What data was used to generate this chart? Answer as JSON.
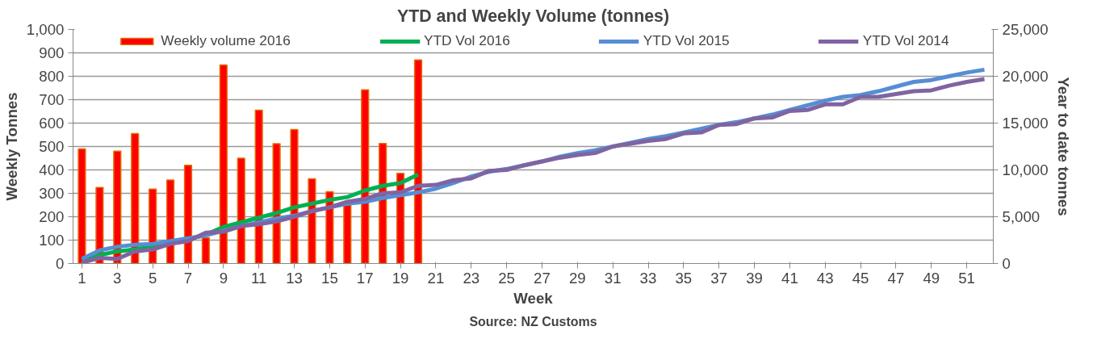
{
  "chart_data": {
    "type": "bar",
    "title": "YTD and Weekly Volume (tonnes)",
    "xlabel": "Week",
    "ylabel": "Weekly Tonnes",
    "y2label": "Year to date tonnes",
    "annotations": [
      "Source: NZ Customs"
    ],
    "x": [
      1,
      2,
      3,
      4,
      5,
      6,
      7,
      8,
      9,
      10,
      11,
      12,
      13,
      14,
      15,
      16,
      17,
      18,
      19,
      20,
      21,
      22,
      23,
      24,
      25,
      26,
      27,
      28,
      29,
      30,
      31,
      32,
      33,
      34,
      35,
      36,
      37,
      38,
      39,
      40,
      41,
      42,
      43,
      44,
      45,
      46,
      47,
      48,
      49,
      50,
      51,
      52
    ],
    "xlim": [
      0.5,
      52.5
    ],
    "xticks": [
      1,
      3,
      5,
      7,
      9,
      11,
      13,
      15,
      17,
      19,
      21,
      23,
      25,
      27,
      29,
      31,
      33,
      35,
      37,
      39,
      41,
      43,
      45,
      47,
      49,
      51
    ],
    "ylim": [
      0,
      1000
    ],
    "yticks": [
      0,
      100,
      200,
      300,
      400,
      500,
      600,
      700,
      800,
      900,
      {
        "value": 1000,
        "label": "1,000"
      }
    ],
    "y2lim": [
      0,
      25000
    ],
    "y2ticks": [
      0,
      {
        "value": 5000,
        "label": "5,000"
      },
      {
        "value": 10000,
        "label": "10,000"
      },
      {
        "value": 15000,
        "label": "15,000"
      },
      {
        "value": 20000,
        "label": "20,000"
      },
      {
        "value": 25000,
        "label": "25,000"
      }
    ],
    "grid": "y",
    "legend": "top",
    "series": [
      {
        "name": "Weekly volume 2016",
        "color": "#ff0000",
        "values": [
          490,
          325,
          480,
          555,
          318,
          357,
          420,
          110,
          848,
          450,
          655,
          512,
          572,
          362,
          307,
          250,
          742,
          513,
          385,
          870,
          null,
          null,
          null,
          null,
          null,
          null,
          null,
          null,
          null,
          null,
          null,
          null,
          null,
          null,
          null,
          null,
          null,
          null,
          null,
          null,
          null,
          null,
          null,
          null,
          null,
          null,
          null,
          null,
          null,
          null,
          null,
          null
        ]
      },
      {
        "name": "YTD Vol 2016",
        "type": "line",
        "axis": "y2",
        "color": "#00b050",
        "values": [
          400,
          900,
          1300,
          1500,
          1900,
          2300,
          2600,
          3100,
          3900,
          4400,
          4900,
          5400,
          6000,
          6400,
          6800,
          7100,
          7800,
          8300,
          8600,
          9500,
          null,
          null,
          null,
          null,
          null,
          null,
          null,
          null,
          null,
          null,
          null,
          null,
          null,
          null,
          null,
          null,
          null,
          null,
          null,
          null,
          null,
          null,
          null,
          null,
          null,
          null,
          null,
          null,
          null,
          null,
          null,
          null
        ]
      },
      {
        "name": "YTD Vol 2015",
        "type": "line",
        "axis": "y2",
        "color": "#558ed5",
        "values": [
          500,
          1400,
          1800,
          2000,
          2100,
          2400,
          2700,
          3000,
          3500,
          4000,
          4400,
          4800,
          5100,
          5600,
          6000,
          6400,
          6600,
          7000,
          7300,
          7600,
          8000,
          8600,
          9300,
          9800,
          10100,
          10500,
          10900,
          11400,
          11800,
          12100,
          12500,
          12900,
          13300,
          13600,
          14000,
          14400,
          14800,
          15100,
          15500,
          15900,
          16400,
          16900,
          17400,
          17800,
          18000,
          18400,
          18900,
          19400,
          19600,
          20000,
          20400,
          20700
        ]
      },
      {
        "name": "YTD Vol 2014",
        "type": "line",
        "axis": "y2",
        "color": "#8064a2",
        "values": [
          100,
          600,
          500,
          1300,
          1500,
          2100,
          2400,
          3300,
          3400,
          4000,
          4200,
          4500,
          5000,
          5600,
          6000,
          6600,
          6900,
          7500,
          7600,
          8300,
          8400,
          8900,
          9100,
          9900,
          10000,
          10500,
          10900,
          11300,
          11600,
          11800,
          12500,
          12800,
          13100,
          13300,
          13900,
          14000,
          14800,
          14900,
          15500,
          15600,
          16300,
          16400,
          17000,
          17000,
          17800,
          17800,
          18100,
          18400,
          18500,
          19000,
          19400,
          19700
        ]
      }
    ]
  }
}
